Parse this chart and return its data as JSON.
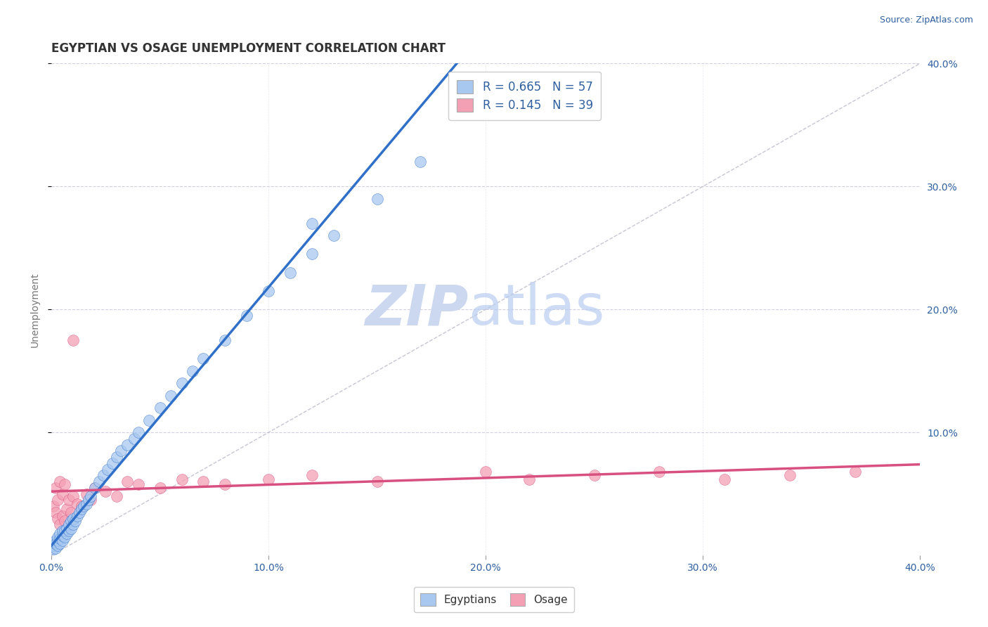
{
  "title": "EGYPTIAN VS OSAGE UNEMPLOYMENT CORRELATION CHART",
  "source_text": "Source: ZipAtlas.com",
  "ylabel": "Unemployment",
  "xlim": [
    0.0,
    0.4
  ],
  "ylim": [
    0.0,
    0.4
  ],
  "xtick_vals": [
    0.0,
    0.1,
    0.2,
    0.3,
    0.4
  ],
  "xtick_labels": [
    "0.0%",
    "10.0%",
    "20.0%",
    "30.0%",
    "40.0%"
  ],
  "ytick_vals": [
    0.1,
    0.2,
    0.3,
    0.4
  ],
  "ytick_labels": [
    "10.0%",
    "20.0%",
    "30.0%",
    "40.0%"
  ],
  "legend_R1": "0.665",
  "legend_N1": "57",
  "legend_R2": "0.145",
  "legend_N2": "39",
  "color_egyptian": "#a8c8f0",
  "color_osage": "#f4a0b4",
  "color_line_egyptian": "#3070c8",
  "color_line_osage": "#d85080",
  "color_diagonal": "#b8b8c8",
  "watermark_color": "#ccd8f0",
  "title_fontsize": 12,
  "axis_label_fontsize": 10,
  "tick_fontsize": 10,
  "legend_fontsize": 12,
  "source_fontsize": 9,
  "background_color": "#ffffff",
  "grid_color": "#d0d0e0",
  "egyptian_x": [
    0.001,
    0.001,
    0.002,
    0.002,
    0.002,
    0.003,
    0.003,
    0.003,
    0.004,
    0.004,
    0.004,
    0.005,
    0.005,
    0.005,
    0.006,
    0.006,
    0.007,
    0.007,
    0.008,
    0.008,
    0.009,
    0.009,
    0.01,
    0.01,
    0.011,
    0.012,
    0.013,
    0.014,
    0.015,
    0.016,
    0.017,
    0.018,
    0.02,
    0.022,
    0.024,
    0.026,
    0.028,
    0.03,
    0.032,
    0.035,
    0.038,
    0.04,
    0.045,
    0.05,
    0.055,
    0.06,
    0.065,
    0.07,
    0.08,
    0.09,
    0.1,
    0.11,
    0.12,
    0.13,
    0.15,
    0.17,
    0.12
  ],
  "egyptian_y": [
    0.005,
    0.008,
    0.006,
    0.01,
    0.012,
    0.008,
    0.012,
    0.015,
    0.01,
    0.014,
    0.018,
    0.012,
    0.016,
    0.02,
    0.015,
    0.02,
    0.018,
    0.022,
    0.02,
    0.025,
    0.022,
    0.028,
    0.025,
    0.03,
    0.028,
    0.032,
    0.035,
    0.038,
    0.04,
    0.042,
    0.045,
    0.048,
    0.055,
    0.06,
    0.065,
    0.07,
    0.075,
    0.08,
    0.085,
    0.09,
    0.095,
    0.1,
    0.11,
    0.12,
    0.13,
    0.14,
    0.15,
    0.16,
    0.175,
    0.195,
    0.215,
    0.23,
    0.245,
    0.26,
    0.29,
    0.32,
    0.27
  ],
  "osage_x": [
    0.001,
    0.002,
    0.002,
    0.003,
    0.003,
    0.004,
    0.004,
    0.005,
    0.005,
    0.006,
    0.006,
    0.007,
    0.008,
    0.009,
    0.01,
    0.012,
    0.014,
    0.016,
    0.018,
    0.02,
    0.025,
    0.03,
    0.035,
    0.04,
    0.05,
    0.06,
    0.07,
    0.08,
    0.1,
    0.12,
    0.15,
    0.2,
    0.22,
    0.25,
    0.28,
    0.31,
    0.34,
    0.37,
    0.01
  ],
  "osage_y": [
    0.04,
    0.035,
    0.055,
    0.03,
    0.045,
    0.025,
    0.06,
    0.032,
    0.05,
    0.028,
    0.058,
    0.038,
    0.045,
    0.035,
    0.048,
    0.042,
    0.04,
    0.05,
    0.045,
    0.055,
    0.052,
    0.048,
    0.06,
    0.058,
    0.055,
    0.062,
    0.06,
    0.058,
    0.062,
    0.065,
    0.06,
    0.068,
    0.062,
    0.065,
    0.068,
    0.062,
    0.065,
    0.068,
    0.175
  ],
  "reg_egyptian_slope": 2.1,
  "reg_egyptian_intercept": 0.008,
  "reg_osage_slope": 0.055,
  "reg_osage_intercept": 0.052
}
